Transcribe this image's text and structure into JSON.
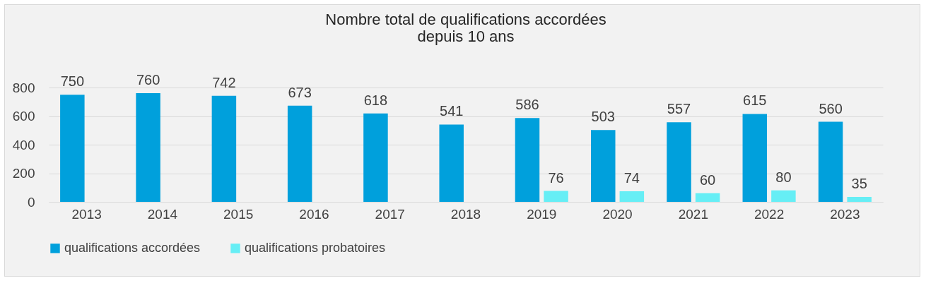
{
  "chart_data": {
    "type": "bar",
    "title": "Nombre total de qualifications accordées\ndepuis 10 ans",
    "categories": [
      "2013",
      "2014",
      "2015",
      "2016",
      "2017",
      "2018",
      "2019",
      "2020",
      "2021",
      "2022",
      "2023"
    ],
    "series": [
      {
        "name": "qualifications accordées",
        "color": "#00a0dc",
        "values": [
          750,
          760,
          742,
          673,
          618,
          541,
          586,
          503,
          557,
          615,
          560
        ]
      },
      {
        "name": "qualifications probatoires",
        "color": "#66eef5",
        "values": [
          null,
          null,
          null,
          null,
          null,
          null,
          76,
          74,
          60,
          80,
          35
        ]
      }
    ],
    "ylim": [
      0,
      800
    ],
    "yticks": [
      0,
      200,
      400,
      600,
      800
    ],
    "grid": "y",
    "legend": "bottom",
    "data_labels": true
  }
}
